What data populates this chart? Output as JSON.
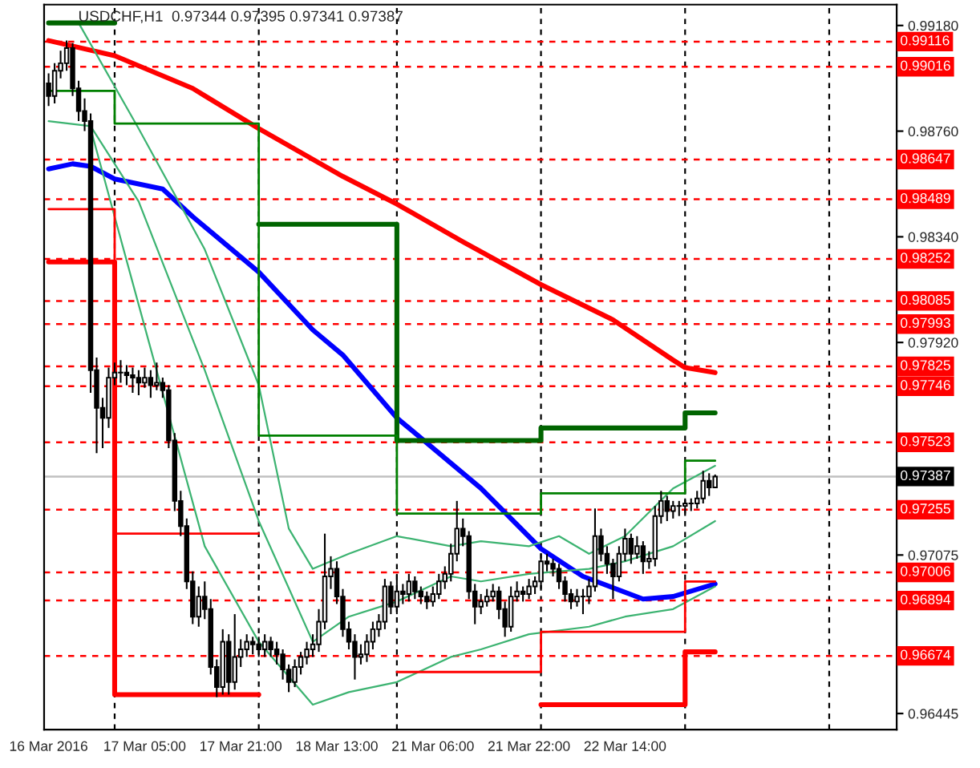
{
  "chart_data": {
    "type": "candlestick",
    "title": "USDCHF,H1  0.97344 0.97395 0.97341 0.97387",
    "categories": [
      "16 Mar 2016",
      null,
      null,
      null,
      null,
      null,
      null,
      null,
      null,
      null,
      null,
      null,
      null,
      null,
      null,
      null,
      "17 Mar 05:00",
      null,
      null,
      null,
      null,
      null,
      null,
      null,
      null,
      null,
      null,
      null,
      null,
      null,
      null,
      null,
      "17 Mar 21:00",
      null,
      null,
      null,
      null,
      null,
      null,
      null,
      null,
      null,
      null,
      null,
      null,
      null,
      null,
      null,
      "18 Mar 13:00",
      null,
      null,
      null,
      null,
      null,
      null,
      null,
      null,
      null,
      null,
      null,
      null,
      null,
      null,
      null,
      "21 Mar 06:00",
      null,
      null,
      null,
      null,
      null,
      null,
      null,
      null,
      null,
      null,
      null,
      null,
      null,
      null,
      null,
      "21 Mar 22:00",
      null,
      null,
      null,
      null,
      null,
      null,
      null,
      null,
      null,
      null,
      null,
      null,
      null,
      null,
      null,
      "22 Mar 14:00",
      null,
      null,
      null,
      null,
      null,
      null,
      null,
      null,
      null,
      null,
      null,
      null,
      null,
      null,
      null
    ],
    "ohlc": [
      [
        0.9895,
        0.9899,
        0.9886,
        0.989
      ],
      [
        0.989,
        0.9903,
        0.9887,
        0.99
      ],
      [
        0.99,
        0.9908,
        0.9897,
        0.9903
      ],
      [
        0.9903,
        0.9912,
        0.99,
        0.9909
      ],
      [
        0.9909,
        0.9911,
        0.989,
        0.9893
      ],
      [
        0.9893,
        0.9896,
        0.988,
        0.9884
      ],
      [
        0.9884,
        0.9889,
        0.9876,
        0.988
      ],
      [
        0.988,
        0.9883,
        0.9772,
        0.9781
      ],
      [
        0.9781,
        0.9786,
        0.9748,
        0.9766
      ],
      [
        0.9766,
        0.977,
        0.975,
        0.9762
      ],
      [
        0.9762,
        0.9782,
        0.9758,
        0.9778
      ],
      [
        0.9778,
        0.9784,
        0.9775,
        0.978
      ],
      [
        0.978,
        0.9785,
        0.9776,
        0.978
      ],
      [
        0.978,
        0.9783,
        0.9775,
        0.9779
      ],
      [
        0.9779,
        0.9782,
        0.9772,
        0.9778
      ],
      [
        0.9778,
        0.9781,
        0.9771,
        0.9776
      ],
      [
        0.9776,
        0.9782,
        0.9774,
        0.9778
      ],
      [
        0.9778,
        0.9781,
        0.977,
        0.9775
      ],
      [
        0.9775,
        0.9784,
        0.9773,
        0.9776
      ],
      [
        0.9776,
        0.9778,
        0.977,
        0.9773
      ],
      [
        0.9773,
        0.9775,
        0.975,
        0.9753
      ],
      [
        0.9753,
        0.9756,
        0.9725,
        0.9729
      ],
      [
        0.9729,
        0.9733,
        0.9715,
        0.9719
      ],
      [
        0.9719,
        0.9722,
        0.9694,
        0.9697
      ],
      [
        0.9697,
        0.9701,
        0.968,
        0.9683
      ],
      [
        0.9683,
        0.9695,
        0.9679,
        0.9691
      ],
      [
        0.9691,
        0.9697,
        0.9682,
        0.9686
      ],
      [
        0.9686,
        0.969,
        0.966,
        0.9663
      ],
      [
        0.9663,
        0.9666,
        0.9651,
        0.9655
      ],
      [
        0.9655,
        0.9678,
        0.9652,
        0.9673
      ],
      [
        0.9673,
        0.9676,
        0.9652,
        0.9657
      ],
      [
        0.9657,
        0.9684,
        0.9654,
        0.9667
      ],
      [
        0.9667,
        0.9674,
        0.9663,
        0.967
      ],
      [
        0.967,
        0.9676,
        0.9667,
        0.9673
      ],
      [
        0.9673,
        0.9675,
        0.9668,
        0.9672
      ],
      [
        0.9672,
        0.9675,
        0.9667,
        0.967
      ],
      [
        0.967,
        0.9676,
        0.9667,
        0.9673
      ],
      [
        0.9673,
        0.9675,
        0.9667,
        0.967
      ],
      [
        0.967,
        0.9673,
        0.9664,
        0.9668
      ],
      [
        0.9668,
        0.967,
        0.9658,
        0.9662
      ],
      [
        0.9662,
        0.9664,
        0.9653,
        0.9657
      ],
      [
        0.9657,
        0.9666,
        0.9655,
        0.9663
      ],
      [
        0.9663,
        0.9669,
        0.966,
        0.9667
      ],
      [
        0.9667,
        0.9673,
        0.9664,
        0.967
      ],
      [
        0.967,
        0.9676,
        0.9667,
        0.9672
      ],
      [
        0.9672,
        0.9686,
        0.9669,
        0.9681
      ],
      [
        0.9681,
        0.9716,
        0.9678,
        0.9699
      ],
      [
        0.9699,
        0.9707,
        0.9694,
        0.9702
      ],
      [
        0.9702,
        0.9705,
        0.9688,
        0.9691
      ],
      [
        0.9691,
        0.9694,
        0.9675,
        0.9678
      ],
      [
        0.9678,
        0.9681,
        0.967,
        0.9673
      ],
      [
        0.9673,
        0.9676,
        0.9658,
        0.9667
      ],
      [
        0.9667,
        0.9672,
        0.9664,
        0.9668
      ],
      [
        0.9668,
        0.9676,
        0.9665,
        0.9673
      ],
      [
        0.9673,
        0.9681,
        0.967,
        0.9678
      ],
      [
        0.9678,
        0.9684,
        0.9675,
        0.9681
      ],
      [
        0.9681,
        0.9698,
        0.9678,
        0.9695
      ],
      [
        0.9695,
        0.9697,
        0.9684,
        0.9687
      ],
      [
        0.9687,
        0.97,
        0.9684,
        0.9693
      ],
      [
        0.9693,
        0.9696,
        0.9688,
        0.9692
      ],
      [
        0.9692,
        0.97,
        0.9689,
        0.9697
      ],
      [
        0.9697,
        0.9699,
        0.969,
        0.9693
      ],
      [
        0.9693,
        0.9695,
        0.9688,
        0.9691
      ],
      [
        0.9691,
        0.9693,
        0.9686,
        0.9689
      ],
      [
        0.9689,
        0.9695,
        0.9687,
        0.9692
      ],
      [
        0.9692,
        0.97,
        0.969,
        0.9697
      ],
      [
        0.9697,
        0.9703,
        0.9694,
        0.97
      ],
      [
        0.97,
        0.9712,
        0.9697,
        0.9708
      ],
      [
        0.9708,
        0.9729,
        0.9705,
        0.9718
      ],
      [
        0.9718,
        0.9722,
        0.9711,
        0.9715
      ],
      [
        0.9715,
        0.9717,
        0.969,
        0.9693
      ],
      [
        0.9693,
        0.9696,
        0.968,
        0.9687
      ],
      [
        0.9687,
        0.9692,
        0.9684,
        0.9689
      ],
      [
        0.9689,
        0.9694,
        0.9687,
        0.9691
      ],
      [
        0.9691,
        0.9696,
        0.9689,
        0.9693
      ],
      [
        0.9693,
        0.9695,
        0.9682,
        0.9686
      ],
      [
        0.9686,
        0.9689,
        0.9675,
        0.9679
      ],
      [
        0.9679,
        0.9695,
        0.9677,
        0.9691
      ],
      [
        0.9691,
        0.9697,
        0.9689,
        0.9693
      ],
      [
        0.9693,
        0.9695,
        0.9689,
        0.9692
      ],
      [
        0.9692,
        0.9698,
        0.969,
        0.9695
      ],
      [
        0.9695,
        0.9699,
        0.9692,
        0.9697
      ],
      [
        0.9697,
        0.9708,
        0.9694,
        0.9705
      ],
      [
        0.9705,
        0.9708,
        0.9701,
        0.9704
      ],
      [
        0.9704,
        0.9706,
        0.9699,
        0.9702
      ],
      [
        0.9702,
        0.9704,
        0.9694,
        0.9697
      ],
      [
        0.9697,
        0.9699,
        0.9689,
        0.9692
      ],
      [
        0.9692,
        0.9694,
        0.9686,
        0.9689
      ],
      [
        0.9689,
        0.9694,
        0.9687,
        0.9691
      ],
      [
        0.9691,
        0.9694,
        0.9684,
        0.9691
      ],
      [
        0.9691,
        0.9698,
        0.9688,
        0.9695
      ],
      [
        0.9695,
        0.9726,
        0.9693,
        0.9715
      ],
      [
        0.9715,
        0.9718,
        0.9705,
        0.9708
      ],
      [
        0.9708,
        0.9711,
        0.97,
        0.9704
      ],
      [
        0.9704,
        0.9706,
        0.969,
        0.9699
      ],
      [
        0.9699,
        0.9711,
        0.9697,
        0.9708
      ],
      [
        0.9708,
        0.9718,
        0.9705,
        0.9714
      ],
      [
        0.9714,
        0.9716,
        0.9704,
        0.9708
      ],
      [
        0.9708,
        0.9715,
        0.9706,
        0.9711
      ],
      [
        0.9711,
        0.9713,
        0.97,
        0.9705
      ],
      [
        0.9705,
        0.9709,
        0.9702,
        0.9706
      ],
      [
        0.9706,
        0.9727,
        0.9703,
        0.9723
      ],
      [
        0.9723,
        0.9733,
        0.972,
        0.9729
      ],
      [
        0.9729,
        0.9731,
        0.9721,
        0.9725
      ],
      [
        0.9725,
        0.9729,
        0.9722,
        0.9727
      ],
      [
        0.9727,
        0.9729,
        0.9723,
        0.9727
      ],
      [
        0.9727,
        0.973,
        0.9724,
        0.9728
      ],
      [
        0.9728,
        0.973,
        0.9725,
        0.9728
      ],
      [
        0.9728,
        0.9733,
        0.9726,
        0.973
      ],
      [
        0.973,
        0.9741,
        0.9728,
        0.9737
      ],
      [
        0.9737,
        0.974,
        0.9731,
        0.97344
      ],
      [
        0.97344,
        0.97395,
        0.97341,
        0.97387
      ]
    ],
    "series": [
      {
        "type": "line",
        "color": "#ff0000",
        "values": [
          0.9912,
          null,
          null,
          null,
          null,
          null,
          null,
          null,
          null,
          null,
          null,
          0.9906,
          null,
          null,
          null,
          null,
          null,
          null,
          null,
          null,
          null,
          null,
          null,
          null,
          0.9893,
          null,
          null,
          null,
          null,
          null,
          null,
          null,
          null,
          null,
          null,
          0.9877,
          null,
          null,
          null,
          null,
          null,
          null,
          null,
          null,
          null,
          null,
          null,
          null,
          null,
          0.9858,
          null,
          null,
          null,
          null,
          null,
          null,
          null,
          null,
          0.9847,
          null,
          null,
          null,
          null,
          null,
          null,
          null,
          null,
          null,
          null,
          0.9832,
          null,
          null,
          null,
          null,
          null,
          null,
          null,
          null,
          null,
          null,
          null,
          null,
          0.9815,
          null,
          null,
          null,
          null,
          null,
          null,
          null,
          null,
          null,
          null,
          null,
          0.9801,
          null,
          null,
          null,
          null,
          null,
          null,
          null,
          null,
          null,
          0.9785,
          null,
          0.9782,
          null,
          null,
          null,
          null,
          0.978
        ]
      },
      {
        "type": "line",
        "color": "#0000ff",
        "values": [
          0.9861,
          null,
          null,
          null,
          0.9863,
          null,
          null,
          0.9862,
          null,
          null,
          null,
          0.9857,
          null,
          null,
          null,
          null,
          null,
          null,
          null,
          0.9853,
          null,
          null,
          null,
          null,
          0.9842,
          null,
          null,
          null,
          null,
          null,
          null,
          null,
          null,
          null,
          null,
          0.982,
          null,
          null,
          null,
          null,
          null,
          null,
          null,
          null,
          0.9797,
          null,
          null,
          null,
          null,
          0.9787,
          null,
          null,
          null,
          null,
          null,
          null,
          null,
          null,
          0.9762,
          null,
          null,
          null,
          null,
          null,
          null,
          null,
          null,
          null,
          null,
          null,
          null,
          null,
          0.9734,
          null,
          null,
          null,
          null,
          null,
          null,
          null,
          null,
          null,
          0.971,
          null,
          null,
          null,
          null,
          null,
          null,
          0.9699,
          null,
          null,
          null,
          null,
          null,
          null,
          null,
          null,
          null,
          0.969,
          null,
          null,
          null,
          null,
          0.9691,
          null,
          null,
          null,
          null,
          null,
          null,
          0.9696
        ]
      },
      {
        "type": "line",
        "color": "#3cb371",
        "values": [
          null,
          null,
          null,
          null,
          null,
          0.9919,
          null,
          null,
          null,
          null,
          null,
          null,
          null,
          null,
          null,
          0.9877,
          null,
          null,
          null,
          null,
          null,
          null,
          null,
          null,
          null,
          null,
          0.9829,
          null,
          null,
          null,
          null,
          null,
          null,
          null,
          null,
          0.9775,
          null,
          null,
          null,
          null,
          0.9718,
          null,
          null,
          null,
          0.9702,
          null,
          null,
          null,
          null,
          null,
          0.9708,
          null,
          null,
          null,
          null,
          null,
          null,
          null,
          0.9715,
          null,
          null,
          null,
          null,
          null,
          null,
          null,
          null,
          0.9711,
          null,
          null,
          null,
          null,
          0.9713,
          null,
          null,
          null,
          null,
          null,
          null,
          null,
          0.9711,
          null,
          null,
          null,
          null,
          0.9715,
          null,
          null,
          null,
          null,
          0.9708,
          null,
          null,
          null,
          null,
          null,
          0.9715,
          null,
          null,
          null,
          null,
          null,
          null,
          null,
          0.9734,
          null,
          null,
          null,
          null,
          null,
          null,
          0.9743
        ]
      },
      {
        "type": "line",
        "color": "#3cb371",
        "values": [
          0.988,
          null,
          null,
          null,
          null,
          null,
          null,
          0.9878,
          null,
          null,
          null,
          null,
          null,
          null,
          null,
          0.9848,
          null,
          null,
          null,
          null,
          null,
          null,
          null,
          null,
          null,
          null,
          0.9781,
          null,
          null,
          null,
          null,
          null,
          null,
          null,
          null,
          0.9721,
          null,
          null,
          null,
          null,
          null,
          null,
          null,
          null,
          0.9673,
          null,
          null,
          null,
          null,
          null,
          0.9683,
          null,
          null,
          null,
          null,
          null,
          null,
          null,
          0.9689,
          null,
          null,
          null,
          null,
          null,
          null,
          null,
          null,
          0.9699,
          null,
          null,
          null,
          null,
          0.9697,
          null,
          null,
          null,
          null,
          null,
          null,
          null,
          0.97,
          null,
          null,
          null,
          null,
          null,
          null,
          null,
          null,
          null,
          0.9702,
          null,
          null,
          null,
          null,
          null,
          0.9705,
          null,
          null,
          null,
          null,
          null,
          null,
          null,
          0.9711,
          null,
          null,
          null,
          null,
          null,
          null,
          0.9721
        ]
      },
      {
        "type": "line",
        "color": "#3cb371",
        "values": [
          null,
          null,
          null,
          null,
          null,
          null,
          null,
          0.9877,
          null,
          null,
          null,
          null,
          null,
          null,
          null,
          0.9807,
          null,
          null,
          null,
          null,
          null,
          null,
          null,
          null,
          null,
          null,
          0.9711,
          null,
          null,
          null,
          null,
          null,
          null,
          null,
          null,
          0.9673,
          null,
          null,
          null,
          null,
          null,
          null,
          null,
          null,
          0.9648,
          null,
          null,
          null,
          null,
          null,
          0.9653,
          null,
          null,
          null,
          null,
          null,
          null,
          null,
          0.9657,
          null,
          null,
          null,
          null,
          null,
          null,
          null,
          null,
          0.9667,
          null,
          null,
          null,
          null,
          0.967,
          null,
          null,
          null,
          null,
          null,
          null,
          null,
          0.9676,
          null,
          null,
          null,
          null,
          null,
          null,
          null,
          null,
          null,
          0.9679,
          null,
          null,
          null,
          null,
          null,
          0.9683,
          null,
          null,
          null,
          null,
          null,
          null,
          null,
          0.9686,
          null,
          null,
          null,
          null,
          null,
          null,
          0.9695
        ]
      },
      {
        "type": "step",
        "color": "#006400",
        "values": [
          0.9919,
          0.9919,
          0.9919,
          0.9919,
          0.9919,
          0.9919,
          0.9919,
          0.9919,
          0.9919,
          0.9919,
          0.9919,
          null,
          null,
          null,
          null,
          null,
          null,
          null,
          null,
          null,
          null,
          null,
          null,
          null,
          null,
          null,
          null,
          null,
          null,
          null,
          null,
          null,
          null,
          null,
          null,
          0.9839,
          0.9839,
          0.9839,
          0.9839,
          0.9839,
          0.9839,
          0.9839,
          0.9839,
          0.9839,
          0.9839,
          0.9839,
          0.9839,
          0.9839,
          0.9839,
          0.9839,
          0.9839,
          0.9839,
          0.9839,
          0.9839,
          0.9839,
          0.9839,
          0.9839,
          0.9839,
          0.9753,
          0.9753,
          0.9753,
          0.9753,
          0.9753,
          0.9753,
          0.9753,
          0.9753,
          0.9753,
          0.9753,
          0.9753,
          0.9753,
          0.9753,
          0.9753,
          0.9753,
          0.9753,
          0.9753,
          0.9753,
          0.9753,
          0.9753,
          0.9753,
          0.9753,
          0.9753,
          0.9753,
          0.9758,
          0.9758,
          0.9758,
          0.9758,
          0.9758,
          0.9758,
          0.9758,
          0.9758,
          0.9758,
          0.9758,
          0.9758,
          0.9758,
          0.9758,
          0.9758,
          0.9758,
          0.9758,
          0.9758,
          0.9758,
          0.9758,
          0.9758,
          0.9758,
          0.9758,
          0.9758,
          0.9758,
          0.9764,
          0.9764,
          0.9764,
          0.9764,
          0.9764,
          0.9764
        ]
      },
      {
        "type": "step",
        "color": "#008000",
        "values": [
          0.9892,
          0.9892,
          0.9892,
          0.9892,
          0.9892,
          0.9892,
          0.9892,
          0.9892,
          0.9892,
          0.9892,
          0.9892,
          0.9879,
          0.9879,
          0.9879,
          0.9879,
          0.9879,
          0.9879,
          0.9879,
          0.9879,
          0.9879,
          0.9879,
          0.9879,
          0.9879,
          0.9879,
          0.9879,
          0.9879,
          0.9879,
          0.9879,
          0.9879,
          0.9879,
          0.9879,
          0.9879,
          0.9879,
          0.9879,
          0.9879,
          0.9755,
          0.9755,
          0.9755,
          0.9755,
          0.9755,
          0.9755,
          0.9755,
          0.9755,
          0.9755,
          0.9755,
          0.9755,
          0.9755,
          0.9755,
          0.9755,
          0.9755,
          0.9755,
          0.9755,
          0.9755,
          0.9755,
          0.9755,
          0.9755,
          0.9755,
          0.9755,
          0.9724,
          0.9724,
          0.9724,
          0.9724,
          0.9724,
          0.9724,
          0.9724,
          0.9724,
          0.9724,
          0.9724,
          0.9724,
          0.9724,
          0.9724,
          0.9724,
          0.9724,
          0.9724,
          0.9724,
          0.9724,
          0.9724,
          0.9724,
          0.9724,
          0.9724,
          0.9724,
          0.9724,
          0.9732,
          0.9732,
          0.9732,
          0.9732,
          0.9732,
          0.9732,
          0.9732,
          0.9732,
          0.9732,
          0.9732,
          0.9732,
          0.9732,
          0.9732,
          0.9732,
          0.9732,
          0.9732,
          0.9732,
          0.9732,
          0.9732,
          0.9732,
          0.9732,
          0.9732,
          0.9732,
          0.9732,
          0.9745,
          0.9745,
          0.9745,
          0.9745,
          0.9745,
          0.9745
        ]
      },
      {
        "type": "step",
        "color": "#ff0000",
        "values": [
          0.9824,
          0.9824,
          0.9824,
          0.9824,
          0.9824,
          0.9824,
          0.9824,
          0.9824,
          0.9824,
          0.9824,
          0.9824,
          0.9652,
          0.9652,
          0.9652,
          0.9652,
          0.9652,
          0.9652,
          0.9652,
          0.9652,
          0.9652,
          0.9652,
          0.9652,
          0.9652,
          0.9652,
          0.9652,
          0.9652,
          0.9652,
          0.9652,
          0.9652,
          0.9652,
          0.9652,
          0.9652,
          0.9652,
          0.9652,
          0.9652,
          null,
          null,
          null,
          null,
          null,
          null,
          null,
          null,
          null,
          null,
          null,
          null,
          null,
          null,
          null,
          null,
          null,
          null,
          null,
          null,
          null,
          null,
          null,
          null,
          null,
          null,
          null,
          null,
          null,
          null,
          null,
          null,
          null,
          null,
          null,
          null,
          null,
          null,
          null,
          null,
          null,
          null,
          null,
          null,
          null,
          null,
          null,
          0.9648,
          0.9648,
          0.9648,
          0.9648,
          0.9648,
          0.9648,
          0.9648,
          0.9648,
          0.9648,
          0.9648,
          0.9648,
          0.9648,
          0.9648,
          0.9648,
          0.9648,
          0.9648,
          0.9648,
          0.9648,
          0.9648,
          0.9648,
          0.9648,
          0.9648,
          0.9648,
          0.9648,
          0.9669,
          0.9669,
          0.9669,
          0.9669,
          0.9669,
          0.9669
        ]
      },
      {
        "type": "step",
        "color": "#ff0000",
        "values": [
          0.9845,
          0.9845,
          0.9845,
          0.9845,
          0.9845,
          0.9845,
          0.9845,
          0.9845,
          0.9845,
          0.9845,
          0.9845,
          0.9716,
          0.9716,
          0.9716,
          0.9716,
          0.9716,
          0.9716,
          0.9716,
          0.9716,
          0.9716,
          0.9716,
          0.9716,
          0.9716,
          0.9716,
          0.9716,
          0.9716,
          0.9716,
          0.9716,
          0.9716,
          0.9716,
          0.9716,
          0.9716,
          0.9716,
          0.9716,
          0.9716,
          null,
          null,
          null,
          null,
          null,
          null,
          null,
          null,
          null,
          null,
          null,
          null,
          null,
          null,
          null,
          null,
          null,
          null,
          null,
          null,
          null,
          null,
          null,
          0.9661,
          0.9661,
          0.9661,
          0.9661,
          0.9661,
          0.9661,
          0.9661,
          0.9661,
          0.9661,
          0.9661,
          0.9661,
          0.9661,
          0.9661,
          0.9661,
          0.9661,
          0.9661,
          0.9661,
          0.9661,
          0.9661,
          0.9661,
          0.9661,
          0.9661,
          0.9661,
          0.9661,
          0.9677,
          0.9677,
          0.9677,
          0.9677,
          0.9677,
          0.9677,
          0.9677,
          0.9677,
          0.9677,
          0.9677,
          0.9677,
          0.9677,
          0.9677,
          0.9677,
          0.9677,
          0.9677,
          0.9677,
          0.9677,
          0.9677,
          0.9677,
          0.9677,
          0.9677,
          0.9677,
          0.9677,
          0.9697,
          0.9697,
          0.9697,
          0.9697,
          0.9697,
          0.9697
        ]
      }
    ],
    "ylim": [
      0.96381,
      0.99263
    ],
    "yticks": [
      {
        "value": 0.9918,
        "label": "0.99180"
      },
      {
        "value": 0.9876,
        "label": "0.98760"
      },
      {
        "value": 0.9834,
        "label": "0.98340"
      },
      {
        "value": 0.9792,
        "label": "0.97920"
      },
      {
        "value": 0.97075,
        "label": "0.97075"
      },
      {
        "value": 0.96445,
        "label": "0.96445"
      }
    ],
    "grid": "x",
    "ref_lines": [
      {
        "axis": "y",
        "value": 0.99116,
        "label": "0.99116",
        "color": "#ff0000",
        "line_style": "dashed"
      },
      {
        "axis": "y",
        "value": 0.99016,
        "label": "0.99016",
        "color": "#ff0000",
        "line_style": "dashed"
      },
      {
        "axis": "y",
        "value": 0.98647,
        "label": "0.98647",
        "color": "#ff0000",
        "line_style": "dashed"
      },
      {
        "axis": "y",
        "value": 0.98489,
        "label": "0.98489",
        "color": "#ff0000",
        "line_style": "dashed"
      },
      {
        "axis": "y",
        "value": 0.98252,
        "label": "0.98252",
        "color": "#ff0000",
        "line_style": "dashed"
      },
      {
        "axis": "y",
        "value": 0.98085,
        "label": "0.98085",
        "color": "#ff0000",
        "line_style": "dashed"
      },
      {
        "axis": "y",
        "value": 0.97993,
        "label": "0.97993",
        "color": "#ff0000",
        "line_style": "dashed"
      },
      {
        "axis": "y",
        "value": 0.97825,
        "label": "0.97825",
        "color": "#ff0000",
        "line_style": "dashed"
      },
      {
        "axis": "y",
        "value": 0.97746,
        "label": "0.97746",
        "color": "#ff0000",
        "line_style": "dashed"
      },
      {
        "axis": "y",
        "value": 0.97523,
        "label": "0.97523",
        "color": "#ff0000",
        "line_style": "dashed"
      },
      {
        "axis": "y",
        "value": 0.97387,
        "label": "0.97387",
        "color": "#c0c0c0",
        "line_style": "solid"
      },
      {
        "axis": "y",
        "value": 0.97255,
        "label": "0.97255",
        "color": "#ff0000",
        "line_style": "dashed"
      },
      {
        "axis": "y",
        "value": 0.97006,
        "label": "0.97006",
        "color": "#ff0000",
        "line_style": "dashed"
      },
      {
        "axis": "y",
        "value": 0.96894,
        "label": "0.96894",
        "color": "#ff0000",
        "line_style": "dashed"
      },
      {
        "axis": "y",
        "value": 0.96674,
        "label": "0.96674",
        "color": "#ff0000",
        "line_style": "dashed"
      }
    ]
  }
}
